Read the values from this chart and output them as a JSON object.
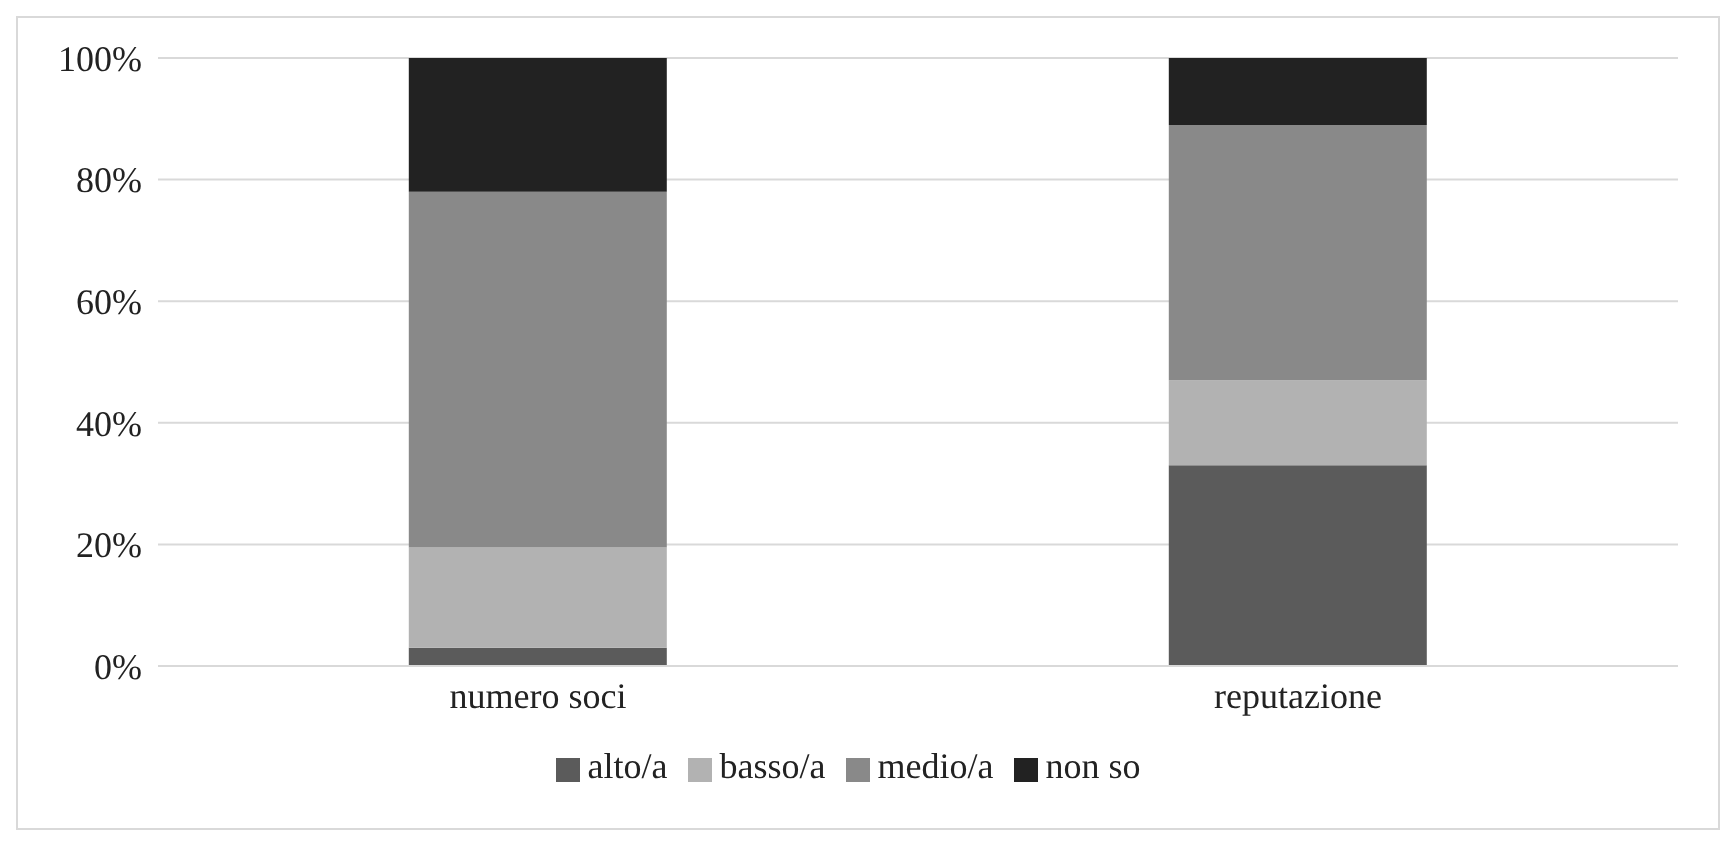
{
  "chart_data": {
    "type": "bar",
    "stacked": true,
    "categories": [
      "numero soci",
      "reputazione"
    ],
    "series": [
      {
        "name": "alto/a",
        "color": "#5b5b5b",
        "values": [
          3,
          33
        ]
      },
      {
        "name": "basso/a",
        "color": "#b2b2b2",
        "values": [
          16.5,
          14
        ]
      },
      {
        "name": "medio/a",
        "color": "#898989",
        "values": [
          58.5,
          42
        ]
      },
      {
        "name": "non so",
        "color": "#222222",
        "values": [
          22,
          11
        ]
      }
    ],
    "ylim": [
      0,
      100
    ],
    "yticks": [
      {
        "value": 0,
        "label": "0%"
      },
      {
        "value": 20,
        "label": "20%"
      },
      {
        "value": 40,
        "label": "40%"
      },
      {
        "value": 60,
        "label": "60%"
      },
      {
        "value": 80,
        "label": "80%"
      },
      {
        "value": 100,
        "label": "100%"
      }
    ],
    "grid": "y",
    "legend": "bottom"
  }
}
